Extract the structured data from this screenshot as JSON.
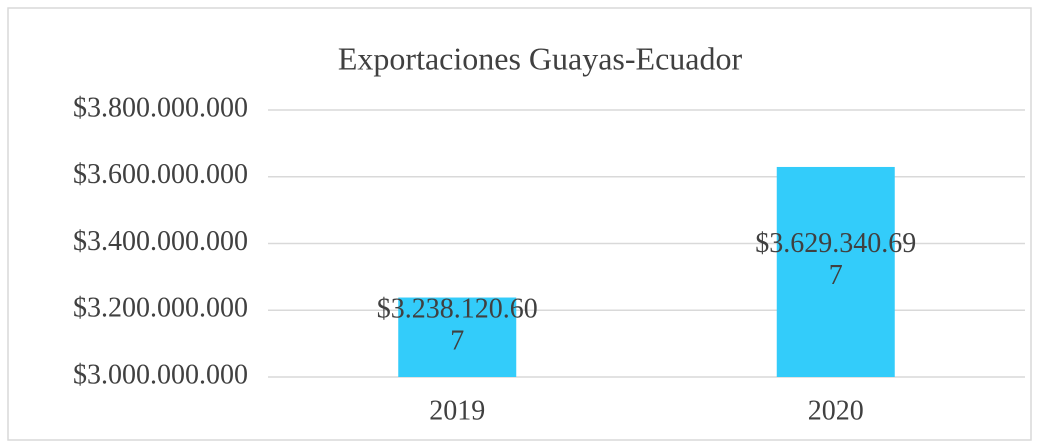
{
  "chart_data": {
    "type": "bar",
    "title": "Exportaciones Guayas-Ecuador",
    "categories": [
      "2019",
      "2020"
    ],
    "values": [
      3238120607,
      3629340697
    ],
    "value_labels": [
      "$3.238.120.607",
      "$3.629.340.697"
    ],
    "color": "#33ccfa",
    "ylim": [
      3000000000,
      3800000000
    ],
    "yticks": [
      {
        "value": 3000000000,
        "label": "$3.000.000.000"
      },
      {
        "value": 3200000000,
        "label": "$3.200.000.000"
      },
      {
        "value": 3400000000,
        "label": "$3.400.000.000"
      },
      {
        "value": 3600000000,
        "label": "$3.600.000.000"
      },
      {
        "value": 3800000000,
        "label": "$3.800.000.000"
      }
    ],
    "grid": true
  }
}
